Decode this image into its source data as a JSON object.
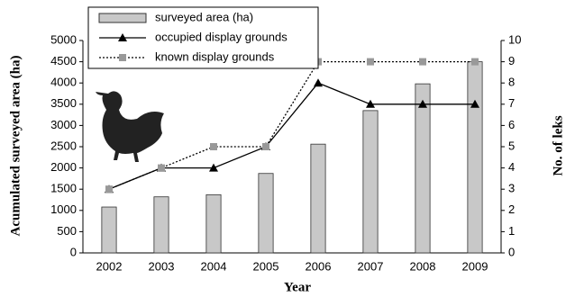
{
  "chart_data": {
    "type": "bar",
    "xlabel": "Year",
    "ylabel": "Acumulated surveyed area (ha)",
    "y2label": "No. of leks",
    "categories": [
      "2002",
      "2003",
      "2004",
      "2005",
      "2006",
      "2007",
      "2008",
      "2009"
    ],
    "series": [
      {
        "name": "surveyed area (ha)",
        "type": "bar",
        "color": "#c8c8c8",
        "axis": "y",
        "values": [
          1080,
          1320,
          1370,
          1870,
          2560,
          3350,
          3980,
          4500
        ]
      },
      {
        "name": "occupied display grounds",
        "type": "line",
        "color": "#000000",
        "axis": "y2",
        "marker": "triangle",
        "dash": "solid",
        "values": [
          3,
          4,
          4,
          5,
          8,
          7,
          7,
          7
        ]
      },
      {
        "name": "known display grounds",
        "type": "line",
        "color": "#999999",
        "axis": "y2",
        "marker": "square",
        "dash": "dotted",
        "values": [
          3,
          4,
          5,
          5,
          9,
          9,
          9,
          9
        ]
      }
    ],
    "ylim": [
      0,
      5000
    ],
    "yticks": [
      0,
      500,
      1000,
      1500,
      2000,
      2500,
      3000,
      3500,
      4000,
      4500,
      5000
    ],
    "y2lim": [
      0,
      10
    ],
    "y2ticks": [
      0,
      1,
      2,
      3,
      4,
      5,
      6,
      7,
      8,
      9,
      10
    ],
    "legend": "top-left"
  }
}
